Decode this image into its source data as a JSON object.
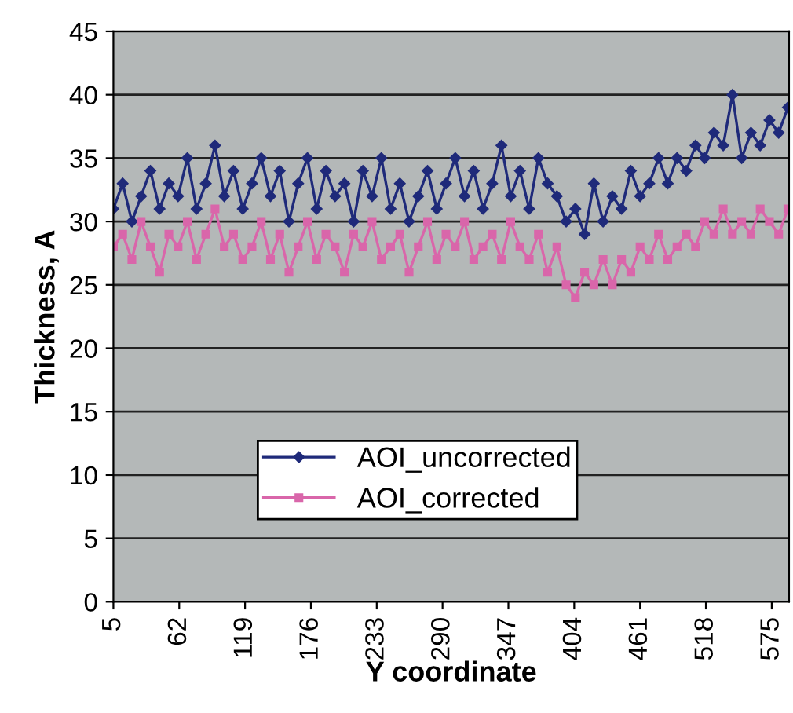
{
  "chart_data": {
    "type": "line",
    "xlabel": "Y coordinate",
    "ylabel": "Thickness, A",
    "x": [
      5,
      13,
      21,
      29,
      37,
      45,
      53,
      61,
      69,
      77,
      85,
      93,
      101,
      109,
      117,
      125,
      133,
      141,
      149,
      157,
      165,
      173,
      181,
      189,
      197,
      205,
      213,
      221,
      229,
      237,
      245,
      253,
      261,
      269,
      277,
      285,
      293,
      301,
      309,
      317,
      325,
      333,
      341,
      349,
      357,
      365,
      373,
      381,
      389,
      397,
      405,
      413,
      421,
      429,
      437,
      445,
      453,
      461,
      469,
      477,
      485,
      493,
      501,
      509,
      517,
      525,
      533,
      541,
      549,
      557,
      565,
      573,
      581,
      589
    ],
    "series": [
      {
        "name": "AOI_uncorrected",
        "color": "#1f2a7a",
        "marker": "diamond",
        "values": [
          31,
          33,
          30,
          32,
          34,
          31,
          33,
          32,
          35,
          31,
          33,
          36,
          32,
          34,
          31,
          33,
          35,
          32,
          34,
          30,
          33,
          35,
          31,
          34,
          32,
          33,
          30,
          34,
          32,
          35,
          31,
          33,
          30,
          32,
          34,
          31,
          33,
          35,
          32,
          34,
          31,
          33,
          36,
          32,
          34,
          31,
          35,
          33,
          32,
          30,
          31,
          29,
          33,
          30,
          32,
          31,
          34,
          32,
          33,
          35,
          33,
          35,
          34,
          36,
          35,
          37,
          36,
          40,
          35,
          37,
          36,
          38,
          37,
          39
        ]
      },
      {
        "name": "AOI_corrected",
        "color": "#d966aa",
        "marker": "square",
        "values": [
          28,
          29,
          27,
          30,
          28,
          26,
          29,
          28,
          30,
          27,
          29,
          31,
          28,
          29,
          27,
          28,
          30,
          27,
          29,
          26,
          28,
          30,
          27,
          29,
          28,
          26,
          29,
          28,
          30,
          27,
          28,
          29,
          26,
          28,
          30,
          27,
          29,
          28,
          30,
          27,
          28,
          29,
          27,
          30,
          28,
          27,
          29,
          26,
          28,
          25,
          24,
          26,
          25,
          27,
          25,
          27,
          26,
          28,
          27,
          29,
          27,
          28,
          29,
          28,
          30,
          29,
          31,
          29,
          30,
          29,
          31,
          30,
          29,
          31
        ]
      }
    ],
    "xlim": [
      5,
      590
    ],
    "xticks": [
      5,
      62,
      119,
      176,
      233,
      290,
      347,
      404,
      461,
      518,
      575
    ],
    "ylim": [
      0,
      45
    ],
    "yticks": [
      0,
      5,
      10,
      15,
      20,
      25,
      30,
      35,
      40,
      45
    ],
    "grid": "y",
    "legend": "bottom",
    "line_style": "solid"
  }
}
